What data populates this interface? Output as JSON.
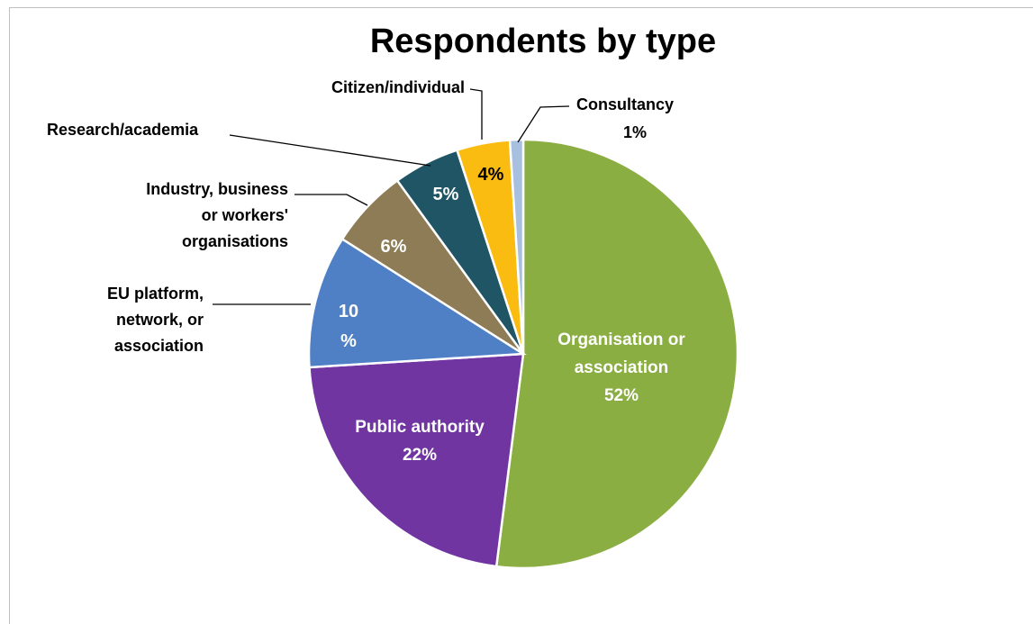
{
  "chart_data": {
    "type": "pie",
    "title": "Respondents by type",
    "slices": [
      {
        "label_lines": [
          "Organisation or",
          "association"
        ],
        "value_text": "52%",
        "value": 52,
        "color": "#8bae43"
      },
      {
        "label_lines": [
          "Public authority"
        ],
        "value_text": "22%",
        "value": 22,
        "color": "#7035a0"
      },
      {
        "label_lines": [
          "EU platform,",
          "network, or",
          "association"
        ],
        "value_text_lines": [
          "10",
          "%"
        ],
        "value": 10,
        "color": "#4f80c6"
      },
      {
        "label_lines": [
          "Industry, business",
          "or workers'",
          "organisations"
        ],
        "value_text": "6%",
        "value": 6,
        "color": "#8d7c56"
      },
      {
        "label_lines": [
          "Research/academia"
        ],
        "value_text": "5%",
        "value": 5,
        "color": "#1f5564"
      },
      {
        "label_lines": [
          "Citizen/individual"
        ],
        "value_text": "4%",
        "value": 4,
        "color": "#fbbc11"
      },
      {
        "label_lines": [
          "Consultancy"
        ],
        "value_text": "1%",
        "value": 1,
        "color": "#a7c0e0"
      }
    ],
    "legend": "none"
  }
}
